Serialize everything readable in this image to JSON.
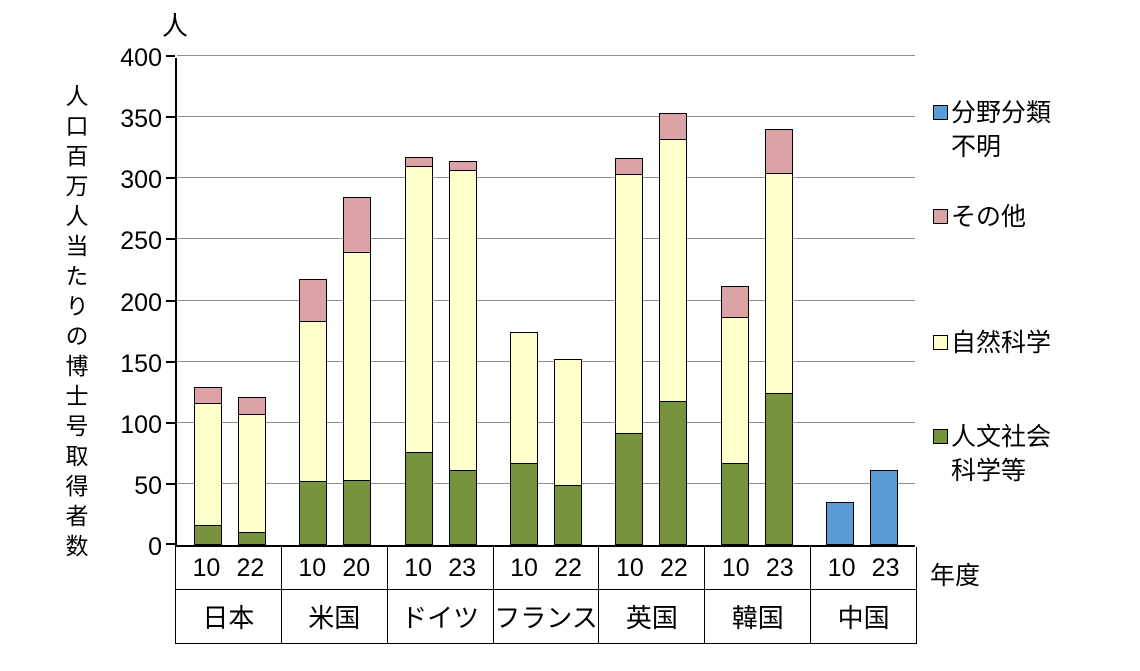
{
  "chart_data": {
    "type": "bar",
    "subtype": "stacked-column",
    "unit_label": "人",
    "y_axis_title": "人口百万人当たりの博士号取得者数",
    "x_axis_title": "年度",
    "ylim": [
      0,
      400
    ],
    "yticks": [
      0,
      50,
      100,
      150,
      200,
      250,
      300,
      350,
      400
    ],
    "grid": true,
    "legend_position": "right",
    "series_order_bottom_to_top": [
      "humanities",
      "natural",
      "other",
      "unknown"
    ],
    "legend": [
      {
        "key": "unknown",
        "label": "分野分類\n不明",
        "color": "#5A9BD5"
      },
      {
        "key": "other",
        "label": "その他",
        "color": "#DCA3A7"
      },
      {
        "key": "natural",
        "label": "自然科学",
        "color": "#FFFFCC"
      },
      {
        "key": "humanities",
        "label": "人文社会\n科学等",
        "color": "#77933C"
      }
    ],
    "groups": [
      {
        "country": "日本",
        "bars": [
          {
            "year": "10",
            "humanities": 16,
            "natural": 101,
            "other": 14,
            "unknown": 0
          },
          {
            "year": "22",
            "humanities": 11,
            "natural": 97,
            "other": 15,
            "unknown": 0
          }
        ]
      },
      {
        "country": "米国",
        "bars": [
          {
            "year": "10",
            "humanities": 52,
            "natural": 132,
            "other": 35,
            "unknown": 0
          },
          {
            "year": "20",
            "humanities": 53,
            "natural": 187,
            "other": 46,
            "unknown": 0
          }
        ]
      },
      {
        "country": "ドイツ",
        "bars": [
          {
            "year": "10",
            "humanities": 76,
            "natural": 235,
            "other": 8,
            "unknown": 0
          },
          {
            "year": "23",
            "humanities": 61,
            "natural": 246,
            "other": 8,
            "unknown": 0
          }
        ]
      },
      {
        "country": "フランス",
        "bars": [
          {
            "year": "10",
            "humanities": 67,
            "natural": 108,
            "other": 0,
            "unknown": 0
          },
          {
            "year": "22",
            "humanities": 49,
            "natural": 104,
            "other": 0,
            "unknown": 0
          }
        ]
      },
      {
        "country": "英国",
        "bars": [
          {
            "year": "10",
            "humanities": 92,
            "natural": 213,
            "other": 14,
            "unknown": 0
          },
          {
            "year": "22",
            "humanities": 118,
            "natural": 215,
            "other": 22,
            "unknown": 0
          }
        ]
      },
      {
        "country": "韓国",
        "bars": [
          {
            "year": "10",
            "humanities": 67,
            "natural": 120,
            "other": 26,
            "unknown": 0
          },
          {
            "year": "23",
            "humanities": 124,
            "natural": 181,
            "other": 37,
            "unknown": 0
          }
        ]
      },
      {
        "country": "中国",
        "bars": [
          {
            "year": "10",
            "humanities": 0,
            "natural": 0,
            "other": 0,
            "unknown": 35
          },
          {
            "year": "23",
            "humanities": 0,
            "natural": 0,
            "other": 0,
            "unknown": 61
          }
        ]
      }
    ]
  }
}
